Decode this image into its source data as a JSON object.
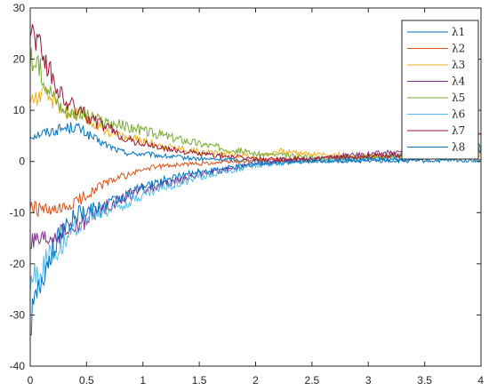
{
  "chart_data": {
    "type": "line",
    "title": "",
    "xlabel": "",
    "ylabel": "",
    "xlim": [
      0,
      4
    ],
    "ylim": [
      -40,
      30
    ],
    "xticks": [
      "0",
      "0.5",
      "1",
      "1.5",
      "2",
      "2.5",
      "3",
      "3.5",
      "4"
    ],
    "yticks": [
      "-40",
      "-30",
      "-20",
      "-10",
      "0",
      "10",
      "20",
      "30"
    ],
    "grid": false,
    "legend": "top-right",
    "series": [
      {
        "name": "λ1",
        "color": "#0072BD",
        "x": [
          0,
          0.1,
          0.2,
          0.3,
          0.4,
          0.5,
          0.6,
          0.7,
          0.8,
          0.9,
          1.0,
          1.2,
          1.5,
          2.0,
          2.5,
          3.0,
          3.5,
          3.8,
          4.0
        ],
        "y": [
          5.0,
          5.5,
          6.0,
          6.5,
          6.8,
          5.5,
          4.0,
          3.0,
          2.0,
          1.5,
          1.5,
          1.0,
          0.5,
          0.2,
          0.1,
          0.1,
          0.1,
          0.2,
          0.2
        ]
      },
      {
        "name": "λ2",
        "color": "#D95319",
        "x": [
          0,
          0.1,
          0.2,
          0.3,
          0.4,
          0.5,
          0.6,
          0.7,
          0.8,
          0.9,
          1.0,
          1.2,
          1.5,
          2.0,
          2.5,
          3.0,
          3.5,
          3.8,
          4.0
        ],
        "y": [
          -9.0,
          -9.5,
          -10.0,
          -9.5,
          -8.0,
          -6.5,
          -5.0,
          -4.0,
          -3.0,
          -2.5,
          -1.5,
          -0.8,
          -0.4,
          0.2,
          0.3,
          1.0,
          1.5,
          1.5,
          2.0
        ]
      },
      {
        "name": "λ3",
        "color": "#EDB120",
        "x": [
          0,
          0.1,
          0.2,
          0.3,
          0.4,
          0.5,
          0.6,
          0.7,
          0.8,
          0.9,
          1.0,
          1.2,
          1.5,
          2.0,
          2.2,
          2.5,
          3.0,
          3.5,
          4.0
        ],
        "y": [
          12.0,
          13.0,
          12.0,
          10.0,
          9.5,
          8.0,
          7.0,
          6.0,
          5.0,
          4.5,
          4.0,
          3.0,
          2.0,
          1.0,
          2.0,
          1.5,
          1.0,
          0.8,
          1.0
        ]
      },
      {
        "name": "λ4",
        "color": "#7E2F8E",
        "x": [
          0,
          0.1,
          0.2,
          0.3,
          0.4,
          0.5,
          0.6,
          0.7,
          0.8,
          0.9,
          1.0,
          1.2,
          1.5,
          2.0,
          2.5,
          3.0,
          3.5,
          3.8,
          4.0
        ],
        "y": [
          -16.0,
          -16.0,
          -15.0,
          -14.0,
          -13.0,
          -11.5,
          -10.0,
          -8.5,
          -7.5,
          -6.5,
          -5.5,
          -4.5,
          -2.5,
          -0.5,
          0.5,
          1.5,
          2.0,
          2.5,
          3.5
        ]
      },
      {
        "name": "λ5",
        "color": "#77AC30",
        "x": [
          0,
          0.1,
          0.2,
          0.3,
          0.4,
          0.5,
          0.6,
          0.7,
          0.8,
          0.9,
          1.0,
          1.2,
          1.5,
          2.0,
          2.5,
          3.0,
          3.5,
          4.0
        ],
        "y": [
          20.0,
          17.5,
          13.0,
          10.0,
          9.5,
          9.0,
          8.0,
          7.5,
          7.0,
          6.5,
          6.0,
          5.0,
          3.5,
          1.5,
          0.8,
          0.8,
          1.5,
          2.5
        ]
      },
      {
        "name": "λ6",
        "color": "#4DBEEE",
        "x": [
          0,
          0.1,
          0.2,
          0.3,
          0.4,
          0.5,
          0.6,
          0.7,
          0.8,
          0.9,
          1.0,
          1.2,
          1.5,
          2.0,
          2.5,
          3.0,
          3.5,
          3.8,
          4.0
        ],
        "y": [
          -23.5,
          -21.0,
          -18.0,
          -15.5,
          -13.0,
          -11.0,
          -10.5,
          -9.5,
          -8.5,
          -7.5,
          -6.5,
          -5.0,
          -3.0,
          -0.8,
          0.2,
          0.5,
          1.5,
          2.5,
          3.0
        ]
      },
      {
        "name": "λ7",
        "color": "#A2142F",
        "x": [
          0,
          0.1,
          0.2,
          0.3,
          0.4,
          0.5,
          0.6,
          0.7,
          0.8,
          0.9,
          1.0,
          1.2,
          1.5,
          2.0,
          2.5,
          3.0,
          3.5,
          3.8,
          4.0
        ],
        "y": [
          27.0,
          22.0,
          16.0,
          12.0,
          10.5,
          9.0,
          7.5,
          6.5,
          5.0,
          4.0,
          3.5,
          2.5,
          1.5,
          0.5,
          0.5,
          1.0,
          1.5,
          2.0,
          5.0
        ]
      },
      {
        "name": "λ8",
        "color": "#0072BD",
        "x": [
          0,
          0.05,
          0.1,
          0.2,
          0.3,
          0.4,
          0.5,
          0.6,
          0.7,
          0.8,
          0.9,
          1.0,
          1.2,
          1.5,
          2.0,
          2.5,
          3.0,
          3.5,
          3.8,
          4.0
        ],
        "y": [
          -30.5,
          -28.0,
          -23.0,
          -17.0,
          -13.0,
          -10.5,
          -9.5,
          -9.0,
          -8.0,
          -7.0,
          -6.0,
          -5.0,
          -3.5,
          -2.0,
          -0.5,
          0.0,
          0.3,
          0.5,
          1.0,
          2.0
        ]
      }
    ]
  }
}
